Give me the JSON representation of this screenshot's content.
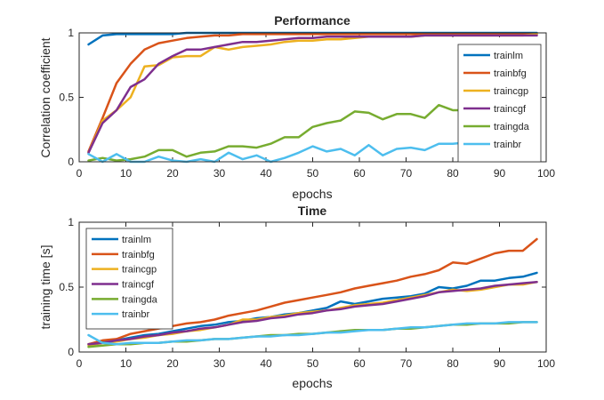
{
  "chart_data": [
    {
      "type": "line",
      "title": "Performance",
      "xlabel": "epochs",
      "ylabel": "Correlation coefficient",
      "xlim": [
        0,
        100
      ],
      "ylim": [
        0,
        1
      ],
      "xticks": [
        0,
        10,
        20,
        30,
        40,
        50,
        60,
        70,
        80,
        90,
        100
      ],
      "yticks": [
        0,
        0.5,
        1
      ],
      "grid": false,
      "legend": "right",
      "x": [
        2,
        5,
        8,
        11,
        14,
        17,
        20,
        23,
        26,
        29,
        32,
        35,
        38,
        41,
        44,
        47,
        50,
        53,
        56,
        59,
        62,
        65,
        68,
        71,
        74,
        77,
        80,
        83,
        86,
        89,
        92,
        95,
        98
      ],
      "series": [
        {
          "name": "trainlm",
          "color": "#0072BD",
          "values": [
            0.91,
            0.98,
            0.99,
            0.99,
            0.99,
            0.99,
            0.99,
            1.0,
            1.0,
            1.0,
            1.0,
            1.0,
            1.0,
            1.0,
            1.0,
            1.0,
            1.0,
            1.0,
            1.0,
            1.0,
            1.0,
            1.0,
            1.0,
            1.0,
            1.0,
            1.0,
            1.0,
            1.0,
            1.0,
            1.0,
            1.0,
            1.0,
            1.0
          ]
        },
        {
          "name": "trainbfg",
          "color": "#D95319",
          "values": [
            0.08,
            0.34,
            0.61,
            0.76,
            0.87,
            0.92,
            0.94,
            0.96,
            0.97,
            0.98,
            0.98,
            0.99,
            0.99,
            0.99,
            0.99,
            0.99,
            0.99,
            0.99,
            0.99,
            0.99,
            0.99,
            0.99,
            0.99,
            0.99,
            0.99,
            0.99,
            0.99,
            0.99,
            0.99,
            0.99,
            0.99,
            0.99,
            0.99
          ]
        },
        {
          "name": "traincgp",
          "color": "#EDB120",
          "values": [
            0.07,
            0.32,
            0.4,
            0.5,
            0.74,
            0.75,
            0.81,
            0.82,
            0.82,
            0.89,
            0.87,
            0.89,
            0.9,
            0.91,
            0.93,
            0.94,
            0.94,
            0.95,
            0.95,
            0.96,
            0.97,
            0.97,
            0.97,
            0.97,
            0.98,
            0.98,
            0.98,
            0.98,
            0.98,
            0.98,
            0.98,
            0.98,
            0.99
          ]
        },
        {
          "name": "traincgf",
          "color": "#7E2F8E",
          "values": [
            0.07,
            0.3,
            0.4,
            0.58,
            0.64,
            0.76,
            0.82,
            0.87,
            0.87,
            0.89,
            0.91,
            0.93,
            0.93,
            0.94,
            0.95,
            0.96,
            0.96,
            0.97,
            0.97,
            0.97,
            0.97,
            0.97,
            0.97,
            0.97,
            0.98,
            0.98,
            0.98,
            0.98,
            0.98,
            0.98,
            0.98,
            0.98,
            0.98
          ]
        },
        {
          "name": "traingda",
          "color": "#77AC30",
          "values": [
            0.01,
            0.03,
            0.01,
            0.02,
            0.04,
            0.09,
            0.09,
            0.04,
            0.07,
            0.08,
            0.12,
            0.12,
            0.11,
            0.14,
            0.19,
            0.19,
            0.27,
            0.3,
            0.32,
            0.39,
            0.38,
            0.33,
            0.37,
            0.37,
            0.34,
            0.44,
            0.4,
            0.4,
            0.4,
            0.4,
            0.4,
            0.4,
            0.46
          ]
        },
        {
          "name": "trainbr",
          "color": "#4DBEEE",
          "values": [
            0.06,
            0.0,
            0.06,
            0.0,
            0.0,
            0.04,
            0.01,
            0.0,
            0.02,
            0.0,
            0.07,
            0.02,
            0.05,
            0.0,
            0.03,
            0.07,
            0.12,
            0.08,
            0.1,
            0.05,
            0.13,
            0.05,
            0.1,
            0.11,
            0.09,
            0.14,
            0.14,
            0.15,
            0.17,
            0.09,
            0.13,
            0.07,
            0.16
          ]
        }
      ]
    },
    {
      "type": "line",
      "title": "Time",
      "xlabel": "epochs",
      "ylabel": "training time [s]",
      "xlim": [
        0,
        100
      ],
      "ylim": [
        0,
        1
      ],
      "xticks": [
        0,
        10,
        20,
        30,
        40,
        50,
        60,
        70,
        80,
        90,
        100
      ],
      "yticks": [
        0,
        0.5,
        1
      ],
      "grid": false,
      "legend": "top-left",
      "x": [
        2,
        5,
        8,
        11,
        14,
        17,
        20,
        23,
        26,
        29,
        32,
        35,
        38,
        41,
        44,
        47,
        50,
        53,
        56,
        59,
        62,
        65,
        68,
        71,
        74,
        77,
        80,
        83,
        86,
        89,
        92,
        95,
        98
      ],
      "series": [
        {
          "name": "trainlm",
          "color": "#0072BD",
          "values": [
            0.06,
            0.08,
            0.09,
            0.11,
            0.13,
            0.14,
            0.16,
            0.18,
            0.2,
            0.21,
            0.23,
            0.24,
            0.26,
            0.27,
            0.29,
            0.3,
            0.32,
            0.34,
            0.39,
            0.37,
            0.39,
            0.41,
            0.42,
            0.43,
            0.45,
            0.5,
            0.49,
            0.51,
            0.55,
            0.55,
            0.57,
            0.58,
            0.61
          ]
        },
        {
          "name": "trainbfg",
          "color": "#D95319",
          "values": [
            0.06,
            0.09,
            0.1,
            0.14,
            0.16,
            0.18,
            0.2,
            0.22,
            0.23,
            0.25,
            0.28,
            0.3,
            0.32,
            0.35,
            0.38,
            0.4,
            0.42,
            0.44,
            0.46,
            0.49,
            0.51,
            0.53,
            0.55,
            0.58,
            0.6,
            0.63,
            0.69,
            0.68,
            0.72,
            0.76,
            0.78,
            0.78,
            0.87
          ]
        },
        {
          "name": "traincgp",
          "color": "#EDB120",
          "values": [
            0.05,
            0.07,
            0.08,
            0.1,
            0.11,
            0.13,
            0.14,
            0.16,
            0.17,
            0.19,
            0.21,
            0.25,
            0.25,
            0.27,
            0.28,
            0.3,
            0.31,
            0.32,
            0.34,
            0.36,
            0.37,
            0.38,
            0.4,
            0.42,
            0.44,
            0.46,
            0.48,
            0.47,
            0.48,
            0.5,
            0.52,
            0.52,
            0.54
          ]
        },
        {
          "name": "traincgf",
          "color": "#7E2F8E",
          "values": [
            0.06,
            0.07,
            0.09,
            0.1,
            0.12,
            0.13,
            0.15,
            0.16,
            0.18,
            0.19,
            0.21,
            0.23,
            0.24,
            0.26,
            0.27,
            0.29,
            0.3,
            0.32,
            0.33,
            0.35,
            0.36,
            0.37,
            0.39,
            0.41,
            0.43,
            0.46,
            0.47,
            0.48,
            0.49,
            0.51,
            0.52,
            0.53,
            0.54
          ]
        },
        {
          "name": "traingda",
          "color": "#77AC30",
          "values": [
            0.04,
            0.05,
            0.06,
            0.06,
            0.07,
            0.07,
            0.08,
            0.08,
            0.09,
            0.1,
            0.1,
            0.11,
            0.12,
            0.13,
            0.13,
            0.14,
            0.14,
            0.15,
            0.16,
            0.17,
            0.17,
            0.17,
            0.18,
            0.18,
            0.19,
            0.2,
            0.21,
            0.21,
            0.22,
            0.22,
            0.22,
            0.23,
            0.23
          ]
        },
        {
          "name": "trainbr",
          "color": "#4DBEEE",
          "values": [
            0.13,
            0.07,
            0.06,
            0.07,
            0.07,
            0.07,
            0.08,
            0.09,
            0.09,
            0.1,
            0.1,
            0.11,
            0.12,
            0.12,
            0.13,
            0.13,
            0.14,
            0.15,
            0.15,
            0.16,
            0.17,
            0.17,
            0.18,
            0.19,
            0.19,
            0.2,
            0.21,
            0.22,
            0.22,
            0.22,
            0.23,
            0.23,
            0.23
          ]
        }
      ]
    }
  ]
}
